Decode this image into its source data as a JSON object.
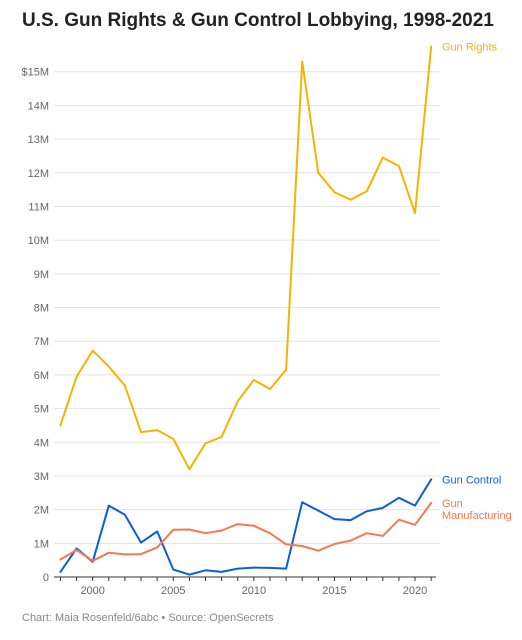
{
  "chart_data": {
    "type": "line",
    "title": "U.S. Gun Rights & Gun Control Lobbying, 1998-2021",
    "footer": "Chart: Maia Rosenfeld/6abc • Source: OpenSecrets",
    "x": [
      1998,
      1999,
      2000,
      2001,
      2002,
      2003,
      2004,
      2005,
      2006,
      2007,
      2008,
      2009,
      2010,
      2011,
      2012,
      2013,
      2014,
      2015,
      2016,
      2017,
      2018,
      2019,
      2020,
      2021
    ],
    "x_ticks": [
      2000,
      2005,
      2010,
      2015,
      2020
    ],
    "x_tick_labels": [
      "2000",
      "2005",
      "2010",
      "2015",
      "2020"
    ],
    "y_ticks": [
      0,
      1,
      2,
      3,
      4,
      5,
      6,
      7,
      8,
      9,
      10,
      11,
      12,
      13,
      14,
      15
    ],
    "y_tick_labels": [
      "0",
      "1M",
      "2M",
      "3M",
      "4M",
      "5M",
      "6M",
      "7M",
      "8M",
      "9M",
      "10M",
      "11M",
      "12M",
      "13M",
      "14M",
      "$15M"
    ],
    "ylim": [
      0,
      16
    ],
    "xlim": [
      1997.6,
      2021.3
    ],
    "grid": true,
    "series": [
      {
        "name": "Gun Rights",
        "label_lines": [
          "Gun Rights"
        ],
        "color": "#f5b400",
        "values": [
          4.5,
          5.95,
          6.72,
          6.25,
          5.68,
          4.3,
          4.36,
          4.1,
          3.2,
          3.97,
          4.16,
          5.22,
          5.85,
          5.58,
          6.15,
          15.3,
          12.0,
          11.42,
          11.2,
          11.45,
          12.45,
          12.2,
          10.8,
          15.75
        ]
      },
      {
        "name": "Gun Control",
        "label_lines": [
          "Gun Control"
        ],
        "color": "#0b5ed7",
        "values": [
          0.15,
          0.85,
          0.45,
          2.12,
          1.85,
          1.02,
          1.35,
          0.22,
          0.07,
          0.2,
          0.15,
          0.25,
          0.28,
          0.27,
          0.25,
          2.22,
          1.97,
          1.72,
          1.69,
          1.95,
          2.05,
          2.35,
          2.12,
          2.9
        ]
      },
      {
        "name": "Gun Manufacturing",
        "label_lines": [
          "Gun",
          "Manufacturing"
        ],
        "color": "#f37a50",
        "values": [
          0.52,
          0.8,
          0.48,
          0.72,
          0.67,
          0.68,
          0.88,
          1.4,
          1.41,
          1.3,
          1.38,
          1.57,
          1.52,
          1.3,
          0.97,
          0.92,
          0.78,
          0.98,
          1.08,
          1.3,
          1.22,
          1.7,
          1.55,
          2.2
        ]
      }
    ]
  }
}
